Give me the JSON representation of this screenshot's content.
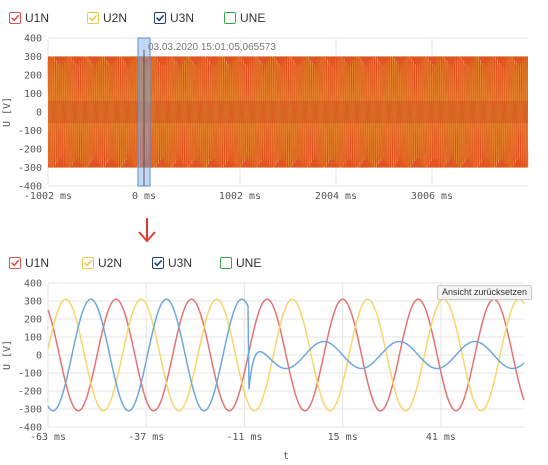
{
  "legends": [
    {
      "items": [
        {
          "name": "U1N",
          "color": "#d9534f"
        },
        {
          "name": "U2N",
          "color": "#f0c94a"
        },
        {
          "name": "U3N",
          "color": "#1f3f7a"
        },
        {
          "name": "UNE",
          "color": "#3aa64a",
          "unchecked": true
        }
      ]
    },
    {
      "items": [
        {
          "name": "U1N",
          "color": "#d9534f"
        },
        {
          "name": "U2N",
          "color": "#f0c94a"
        },
        {
          "name": "U3N",
          "color": "#1f3f7a"
        },
        {
          "name": "UNE",
          "color": "#3aa64a",
          "unchecked": true
        }
      ]
    }
  ],
  "reset_button_label": "Ansicht zurücksetzen",
  "arrow_color": "#e03c31",
  "chart_data": [
    {
      "type": "line",
      "title": "",
      "xlabel": "",
      "ylabel": "U [V]",
      "ylim": [
        -400,
        400
      ],
      "yticks": [
        400,
        300,
        200,
        100,
        0,
        -100,
        -200,
        -300,
        -400
      ],
      "xlim": [
        -1002,
        4008
      ],
      "xticks": [
        -1002,
        0,
        1002,
        2004,
        3006
      ],
      "xtick_labels": [
        "-1002 ms",
        "0 ms",
        "1002 ms",
        "2004 ms",
        "3006 ms"
      ],
      "grid": true,
      "amplitude": 300,
      "signal_x_range": [
        -1002,
        4008
      ],
      "selection_range_ms": [
        -63,
        63
      ],
      "cursor_label": "03.03.2020 15:01:05,065573",
      "series": [
        {
          "name": "U1N",
          "color": "#d9534f",
          "amplitude": 300
        },
        {
          "name": "U2N",
          "color": "#f0c94a",
          "amplitude": 300
        },
        {
          "name": "U3N",
          "color": "#e0701f",
          "amplitude": 300
        }
      ]
    },
    {
      "type": "line",
      "title": "",
      "xlabel": "t",
      "ylabel": "U [V]",
      "ylim": [
        -400,
        400
      ],
      "yticks": [
        400,
        300,
        200,
        100,
        0,
        -100,
        -200,
        -300,
        -400
      ],
      "xlim": [
        -63,
        63
      ],
      "xticks": [
        -63,
        -37,
        -11,
        15,
        41
      ],
      "xtick_labels": [
        "-63 ms",
        "-37 ms",
        "-11 ms",
        "15 ms",
        "41 ms"
      ],
      "grid": true,
      "frequency_hz": 50,
      "series": [
        {
          "name": "U1N",
          "color": "#e57373",
          "amplitude": 310,
          "phase_deg": 180
        },
        {
          "name": "U2N",
          "color": "#f5d76e",
          "amplitude": 310,
          "phase_deg": 60
        },
        {
          "name": "U3N",
          "color": "#6fa8dc",
          "amplitude": 310,
          "phase_deg": -60,
          "fault_at_ms": -10,
          "fault_amplitude": 75,
          "fault_start_value": -240
        }
      ]
    }
  ]
}
